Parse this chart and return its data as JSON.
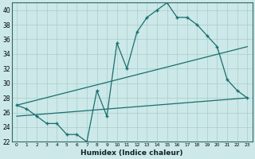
{
  "xlabel": "Humidex (Indice chaleur)",
  "bg_color": "#cce8e8",
  "line_color": "#1a6e6e",
  "grid_color": "#aacccc",
  "xlim": [
    -0.5,
    23.5
  ],
  "ylim": [
    22,
    41
  ],
  "yticks": [
    22,
    24,
    26,
    28,
    30,
    32,
    34,
    36,
    38,
    40
  ],
  "xticks": [
    0,
    1,
    2,
    3,
    4,
    5,
    6,
    7,
    8,
    9,
    10,
    11,
    12,
    13,
    14,
    15,
    16,
    17,
    18,
    19,
    20,
    21,
    22,
    23
  ],
  "series1_x": [
    0,
    1,
    2,
    3,
    4,
    5,
    6,
    7,
    8,
    9,
    10,
    11,
    12,
    13,
    14,
    15,
    16,
    17,
    18,
    19,
    20,
    21,
    22,
    23
  ],
  "series1_y": [
    27.0,
    26.5,
    25.5,
    24.5,
    24.5,
    23.0,
    23.0,
    22.0,
    29.0,
    25.5,
    35.5,
    32.0,
    37.0,
    39.0,
    40.0,
    41.0,
    39.0,
    39.0,
    38.0,
    36.5,
    35.0,
    30.5,
    29.0,
    28.0
  ],
  "series2_x": [
    0,
    23
  ],
  "series2_y": [
    27.0,
    35.0
  ],
  "series3_x": [
    0,
    23
  ],
  "series3_y": [
    25.5,
    28.0
  ]
}
